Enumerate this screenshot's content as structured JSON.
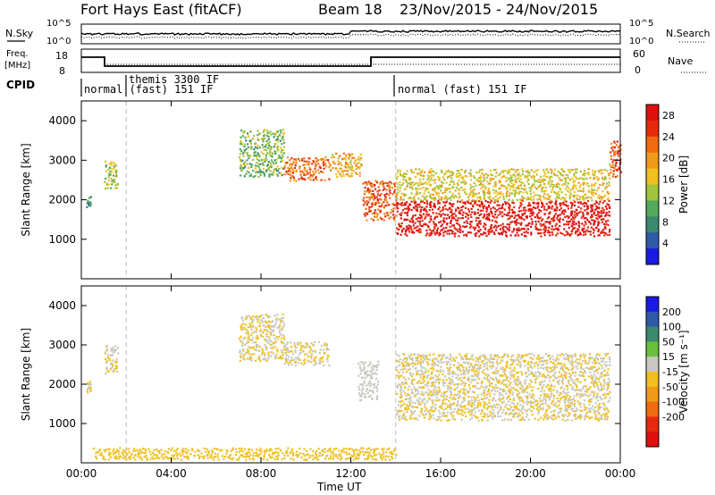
{
  "header": {
    "title": "Fort Hays East (fitACF)",
    "beam": "Beam 18",
    "date_range": "23/Nov/2015 - 24/Nov/2015"
  },
  "status_panels": {
    "nsky_label": "N.Sky",
    "nsearch_label": "N.Search",
    "noise_ticks": [
      "10^5",
      "10^0"
    ],
    "freq_label": "Freq.",
    "freq_unit": "[MHz]",
    "freq_ticks": [
      "18",
      "8"
    ],
    "nave_label": "Nave",
    "nave_ticks": [
      "60",
      "0"
    ],
    "cpid_label": "CPID",
    "cpid_segments": [
      {
        "label": "normal (fast) 151 IF",
        "start": 0.0,
        "end": 2.0
      },
      {
        "label": "themis 3300 IF",
        "start": 2.0,
        "end": 14.0
      },
      {
        "label": "normal (fast) 151 IF",
        "start": 14.0,
        "end": 24.0
      }
    ]
  },
  "colors": {
    "power_scale": [
      "#1a1ae6",
      "#2e5aa8",
      "#3b8a6e",
      "#56a85a",
      "#a0c43c",
      "#f0c020",
      "#f09a1a",
      "#f06a12",
      "#e62a0e",
      "#e01010"
    ],
    "velocity_scale": [
      "#1a1ae6",
      "#2e5aa8",
      "#3b8a6e",
      "#6ac03c",
      "#c8c8c0",
      "#f0c020",
      "#f09a1a",
      "#f06a12",
      "#e62a0e",
      "#e01010"
    ]
  },
  "chart_data": [
    {
      "type": "heatmap",
      "title": "",
      "ylabel": "Slant Range [km]",
      "xlabel": "Time UT",
      "x_ticks": [
        "00:00",
        "04:00",
        "08:00",
        "12:00",
        "16:00",
        "20:00",
        "00:00"
      ],
      "y_ticks": [
        "1000",
        "2000",
        "3000",
        "4000"
      ],
      "xlim": [
        0,
        24
      ],
      "ylim": [
        0,
        4500
      ],
      "colorbar": {
        "label": "Power [dB]",
        "ticks": [
          "4",
          "8",
          "12",
          "16",
          "20",
          "24",
          "28"
        ],
        "range": [
          0,
          30
        ]
      },
      "bands": [
        {
          "t0": 0.2,
          "t1": 0.4,
          "r0": 1800,
          "r1": 2100,
          "value": 8
        },
        {
          "t0": 1.0,
          "t1": 1.6,
          "r0": 2300,
          "r1": 3000,
          "value": 14
        },
        {
          "t0": 7.0,
          "t1": 9.0,
          "r0": 2600,
          "r1": 3800,
          "value": 12
        },
        {
          "t0": 9.0,
          "t1": 11.0,
          "r0": 2500,
          "r1": 3100,
          "value": 22
        },
        {
          "t0": 11.0,
          "t1": 12.5,
          "r0": 2600,
          "r1": 3200,
          "value": 18
        },
        {
          "t0": 12.5,
          "t1": 14.0,
          "r0": 1500,
          "r1": 2500,
          "value": 24
        },
        {
          "t0": 14.0,
          "t1": 23.5,
          "r0": 1100,
          "r1": 2000,
          "value": 28
        },
        {
          "t0": 14.0,
          "t1": 23.5,
          "r0": 2000,
          "r1": 2800,
          "value": 16
        },
        {
          "t0": 23.5,
          "t1": 24.0,
          "r0": 2600,
          "r1": 3500,
          "value": 24
        }
      ]
    },
    {
      "type": "heatmap",
      "title": "",
      "ylabel": "Slant Range [km]",
      "xlabel": "Time UT",
      "x_ticks": [
        "00:00",
        "04:00",
        "08:00",
        "12:00",
        "16:00",
        "20:00",
        "00:00"
      ],
      "y_ticks": [
        "1000",
        "2000",
        "3000",
        "4000"
      ],
      "xlim": [
        0,
        24
      ],
      "ylim": [
        0,
        4500
      ],
      "colorbar": {
        "label": "Velocity [m s⁻¹]",
        "ticks": [
          "200",
          "100",
          "50",
          "15",
          "-15",
          "-50",
          "-100",
          "-200"
        ],
        "range": [
          -250,
          250
        ]
      },
      "bands": [
        {
          "t0": 0.2,
          "t1": 0.4,
          "r0": 1800,
          "r1": 2100,
          "value": 0
        },
        {
          "t0": 1.0,
          "t1": 1.6,
          "r0": 2300,
          "r1": 3000,
          "value": 0
        },
        {
          "t0": 7.0,
          "t1": 9.0,
          "r0": 2600,
          "r1": 3800,
          "value": 0
        },
        {
          "t0": 9.0,
          "t1": 11.0,
          "r0": 2500,
          "r1": 3100,
          "value": 0
        },
        {
          "t0": 12.3,
          "t1": 13.2,
          "r0": 1600,
          "r1": 2600,
          "value": 30
        },
        {
          "t0": 14.0,
          "t1": 23.5,
          "r0": 1100,
          "r1": 2000,
          "value": 0
        },
        {
          "t0": 14.0,
          "t1": 23.5,
          "r0": 2000,
          "r1": 2800,
          "value": 0
        },
        {
          "t0": 0.5,
          "t1": 14.0,
          "r0": 100,
          "r1": 400,
          "value": -40
        }
      ]
    }
  ]
}
